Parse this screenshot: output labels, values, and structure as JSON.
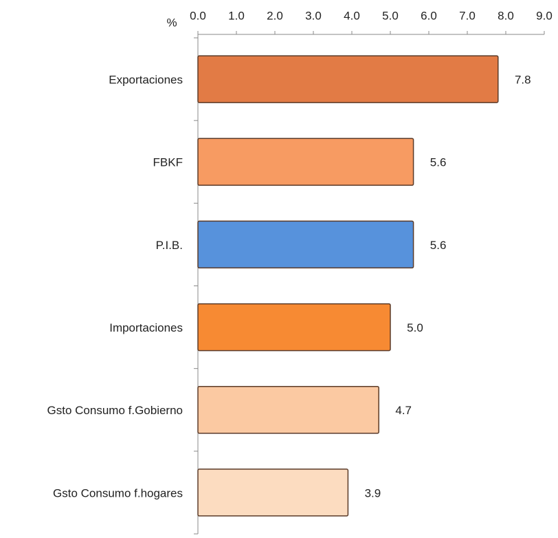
{
  "chart_data": {
    "type": "bar",
    "orientation": "horizontal",
    "x_label": "%",
    "categories": [
      "Exportaciones",
      "FBKF",
      "P.I.B.",
      "Importaciones",
      "Gsto Consumo f.Gobierno",
      "Gsto Consumo f.hogares"
    ],
    "values": [
      7.8,
      5.6,
      5.6,
      5.0,
      4.7,
      3.9
    ],
    "value_labels": [
      "7.8",
      "5.6",
      "5.6",
      "5.0",
      "4.7",
      "3.9"
    ],
    "colors": [
      "#e27b45",
      "#f79b62",
      "#5792dc",
      "#f78a33",
      "#fbc9a2",
      "#fcdcc0"
    ],
    "xlim": [
      0,
      9
    ],
    "xticks": [
      {
        "value": 0,
        "label": "0.0"
      },
      {
        "value": 1,
        "label": "1.0"
      },
      {
        "value": 2,
        "label": "2.0"
      },
      {
        "value": 3,
        "label": "3.0"
      },
      {
        "value": 4,
        "label": "4.0"
      },
      {
        "value": 5,
        "label": "5.0"
      },
      {
        "value": 6,
        "label": "6.0"
      },
      {
        "value": 7,
        "label": "7.0"
      },
      {
        "value": 8,
        "label": "8.0"
      },
      {
        "value": 9,
        "label": "9.0"
      }
    ]
  }
}
